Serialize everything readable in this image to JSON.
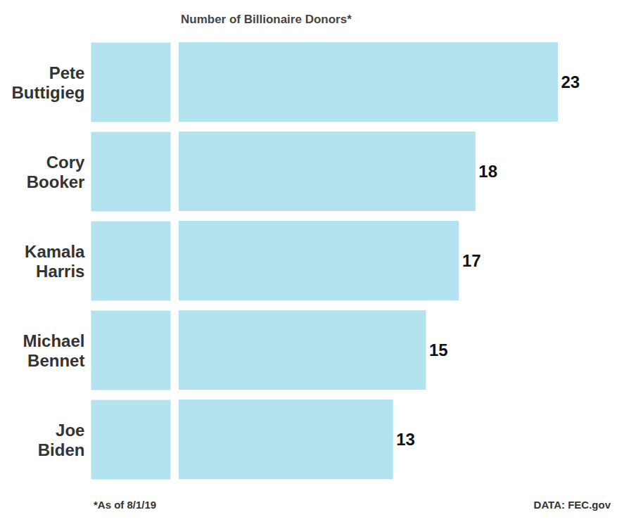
{
  "chart_data": {
    "type": "bar",
    "title": "Number of Billionaire Donors*",
    "categories": [
      "Pete Buttigieg",
      "Cory Booker",
      "Kamala Harris",
      "Michael Bennet",
      "Joe Biden"
    ],
    "values": [
      23,
      18,
      17,
      15,
      13
    ],
    "color": "#b3e3ef",
    "xlim": [
      0,
      23
    ],
    "orientation": "horizontal",
    "data_labels": true,
    "tick_labels": "y",
    "note": "*As of 8/1/19",
    "source": "DATA: FEC.gov"
  }
}
